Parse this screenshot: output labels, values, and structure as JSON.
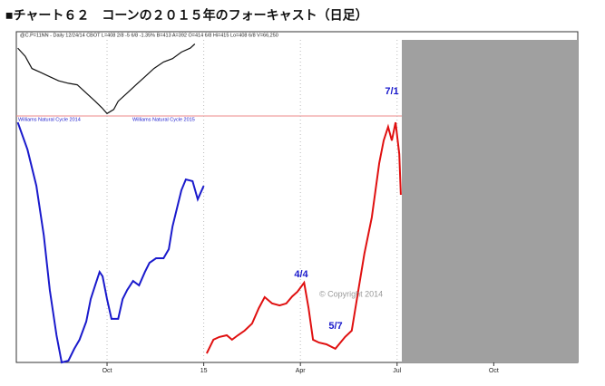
{
  "chart_data": [
    {
      "type": "line",
      "header": "@C.P=11NN - Daily  12/24/14  CBOT  L=408 2/8  -5 6/8  -1.35%  B=413  A=392  O=414 6/8  Hi=415  Lo=408 6/8  V=66,250",
      "xlim": [
        -12.2,
        63.3
      ],
      "ylim": [
        0,
        100
      ],
      "series": [
        {
          "color": "#111111",
          "x": [
            -12.0,
            -11.0,
            -10.1,
            -8.9,
            -7.7,
            -6.5,
            -5.2,
            -4.0,
            -2.8,
            -1.6,
            -0.7,
            0,
            0.9,
            1.5,
            2.7,
            3.9,
            5.1,
            6.3,
            7.6,
            8.8,
            10.0,
            11.2,
            11.8
          ],
          "values": [
            89.2,
            78.5,
            62.4,
            57.0,
            51.6,
            46.2,
            43.0,
            40.9,
            30.1,
            19.4,
            10.8,
            3.2,
            8.6,
            19.4,
            30.1,
            40.9,
            51.6,
            62.4,
            71.0,
            75.3,
            83.9,
            89.2,
            94.6
          ]
        }
      ]
    },
    {
      "type": "line",
      "title": "■チャート６２　コーンの２０１５年のフォーキャスト（日足）",
      "xlim": [
        -12.2,
        63.3
      ],
      "ylim": [
        0,
        100
      ],
      "xticks": [
        {
          "value": 0,
          "label": "Oct"
        },
        {
          "value": 13,
          "label": "15"
        },
        {
          "value": 26,
          "label": "Apr"
        },
        {
          "value": 39,
          "label": "Jul"
        },
        {
          "value": 52,
          "label": "Oct"
        }
      ],
      "grid": true,
      "series": [
        {
          "name": "Williams Natural Cycle 2014",
          "color": "#1a1acc",
          "x": [
            -12.0,
            -10.7,
            -9.5,
            -8.5,
            -7.7,
            -6.8,
            -6.1,
            -5.2,
            -4.4,
            -3.7,
            -2.8,
            -2.2,
            -1.6,
            -1.0,
            -0.6,
            0,
            0.6,
            1.5,
            2.1,
            2.7,
            3.5,
            4.3,
            5.1,
            5.7,
            6.6,
            7.6,
            8.3,
            8.8,
            9.4,
            10.0,
            10.6,
            11.5,
            12.2,
            13.0
          ],
          "values": [
            98.1,
            87.0,
            72.2,
            51.9,
            29.6,
            11.1,
            0,
            0.7,
            5.6,
            9.3,
            16.7,
            25.9,
            31.5,
            37.0,
            35.2,
            25.9,
            17.8,
            17.8,
            25.9,
            29.6,
            33.3,
            31.5,
            37.0,
            40.7,
            42.6,
            42.6,
            46.3,
            55.6,
            63.0,
            70.4,
            74.8,
            74.1,
            66.7,
            72.2
          ]
        },
        {
          "name": "Williams Natural Cycle 2015",
          "color": "#e01010",
          "x": [
            13.4,
            14.3,
            15.1,
            16.1,
            16.8,
            17.6,
            18.5,
            19.5,
            20.4,
            21.2,
            22.2,
            23.2,
            24.1,
            24.9,
            25.6,
            26.5,
            27.1,
            27.7,
            28.5,
            29.5,
            30.7,
            32.0,
            32.9,
            33.8,
            34.6,
            35.6,
            36.6,
            37.2,
            37.8,
            38.3,
            38.8,
            39.3,
            39.5
          ],
          "values": [
            3.7,
            9.3,
            10.4,
            11.1,
            9.3,
            11.1,
            13.0,
            15.9,
            22.2,
            26.7,
            24.1,
            23.3,
            24.1,
            27.0,
            28.9,
            32.6,
            22.2,
            9.3,
            8.1,
            7.4,
            5.6,
            10.4,
            13.0,
            29.6,
            44.4,
            59.3,
            81.5,
            90.7,
            96.3,
            90.7,
            98.1,
            85.2,
            68.5
          ]
        }
      ],
      "annotations": [
        "7/1",
        "4/4",
        "5/7",
        "© Copyright 2014"
      ]
    }
  ]
}
